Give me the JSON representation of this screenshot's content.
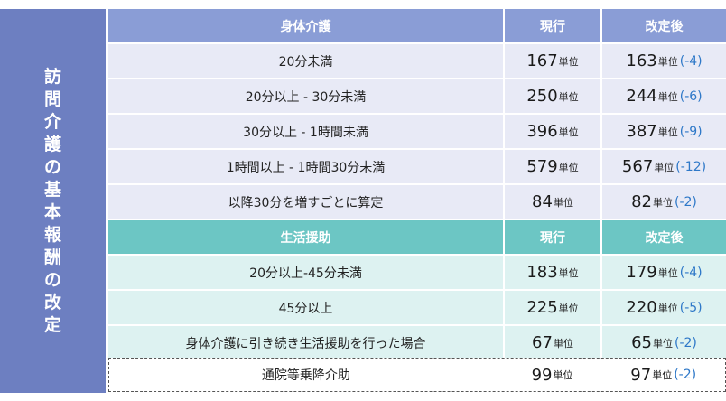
{
  "side_title": [
    "訪",
    "問",
    "介",
    "護",
    "の",
    "基",
    "本",
    "報",
    "酬",
    "の",
    "改",
    "定"
  ],
  "unit": "単位",
  "section1": {
    "header": {
      "label": "身体介護",
      "current": "現行",
      "revised": "改定後"
    },
    "rows": [
      {
        "label": "20分未満",
        "current": "167",
        "revised": "163",
        "diff": "(-4)"
      },
      {
        "label": "20分以上 - 30分未満",
        "current": "250",
        "revised": "244",
        "diff": "(-6)"
      },
      {
        "label": "30分以上 - 1時間未満",
        "current": "396",
        "revised": "387",
        "diff": "(-9)"
      },
      {
        "label": "1時間以上 - 1時間30分未満",
        "current": "579",
        "revised": "567",
        "diff": "(-12)"
      },
      {
        "label": "以降30分を増すごとに算定",
        "current": "84",
        "revised": "82",
        "diff": "(-2)"
      }
    ]
  },
  "section2": {
    "header": {
      "label": "生活援助",
      "current": "現行",
      "revised": "改定後"
    },
    "rows": [
      {
        "label": "20分以上-45分未満",
        "current": "183",
        "revised": "179",
        "diff": "(-4)"
      },
      {
        "label": "45分以上",
        "current": "225",
        "revised": "220",
        "diff": "(-5)"
      },
      {
        "label": "身体介護に引き続き生活援助を行った場合",
        "current": "67",
        "revised": "65",
        "diff": "(-2)"
      }
    ]
  },
  "extra_row": {
    "label": "通院等乗降介助",
    "current": "99",
    "revised": "97",
    "diff": "(-2)"
  }
}
